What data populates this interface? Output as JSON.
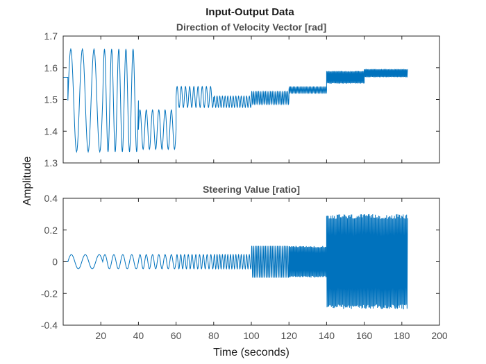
{
  "chart_data": {
    "type": "line",
    "title": "Input-Output Data",
    "xlabel": "Time (seconds)",
    "ylabel": "Amplitude",
    "color": "#0072BD",
    "grid": false,
    "subplots": [
      {
        "title": "Direction of Velocity Vector [rad]",
        "xlim": [
          0,
          200
        ],
        "ylim": [
          1.3,
          1.7
        ],
        "xticks": [],
        "yticks": [
          1.3,
          1.4,
          1.5,
          1.6,
          1.7
        ],
        "ytick_labels": [
          "1.3",
          "1.4",
          "1.5",
          "1.6",
          "1.7"
        ],
        "segments": [
          {
            "t0": 0,
            "t1": 2.5,
            "kind": "const",
            "base": 1.57
          },
          {
            "t0": 2.5,
            "t1": 21,
            "kind": "sine",
            "base": 1.497,
            "amp": 0.162,
            "cycles": 3
          },
          {
            "t0": 21,
            "t1": 40,
            "kind": "sine",
            "base": 1.497,
            "amp": 0.162,
            "cycles": 5
          },
          {
            "t0": 40,
            "t1": 60,
            "kind": "sine",
            "base": 1.405,
            "amp": 0.062,
            "cycles": 6
          },
          {
            "t0": 60,
            "t1": 80,
            "kind": "sine",
            "base": 1.508,
            "amp": 0.033,
            "cycles": 9
          },
          {
            "t0": 80,
            "t1": 100,
            "kind": "sine",
            "base": 1.493,
            "amp": 0.018,
            "cycles": 14
          },
          {
            "t0": 100,
            "t1": 120,
            "kind": "sine",
            "base": 1.505,
            "amp": 0.02,
            "cycles": 22
          },
          {
            "t0": 120,
            "t1": 140,
            "kind": "sine",
            "base": 1.53,
            "amp": 0.01,
            "cycles": 28
          },
          {
            "t0": 140,
            "t1": 160,
            "kind": "band",
            "base": 1.57,
            "amp": 0.02
          },
          {
            "t0": 160,
            "t1": 183,
            "kind": "band",
            "base": 1.583,
            "amp": 0.013
          }
        ]
      },
      {
        "title": "Steering Value [ratio]",
        "xlim": [
          0,
          200
        ],
        "ylim": [
          -0.4,
          0.4
        ],
        "xticks": [
          20,
          40,
          60,
          80,
          100,
          120,
          140,
          160,
          180,
          200
        ],
        "xtick_labels": [
          "20",
          "40",
          "60",
          "80",
          "100",
          "120",
          "140",
          "160",
          "180",
          "200"
        ],
        "yticks": [
          -0.4,
          -0.2,
          0,
          0.2,
          0.4
        ],
        "ytick_labels": [
          "-0.4",
          "-0.2",
          "0",
          "0.2",
          "0.4"
        ],
        "segments": [
          {
            "t0": 0,
            "t1": 2.5,
            "kind": "const",
            "base": 0.0
          },
          {
            "t0": 2.5,
            "t1": 21,
            "kind": "sine",
            "base": 0.0,
            "amp": 0.045,
            "cycles": 2.5
          },
          {
            "t0": 21,
            "t1": 40,
            "kind": "sine",
            "base": 0.0,
            "amp": 0.045,
            "cycles": 4
          },
          {
            "t0": 40,
            "t1": 60,
            "kind": "sine",
            "base": 0.0,
            "amp": 0.045,
            "cycles": 6
          },
          {
            "t0": 60,
            "t1": 80,
            "kind": "sine",
            "base": 0.0,
            "amp": 0.045,
            "cycles": 10
          },
          {
            "t0": 80,
            "t1": 100,
            "kind": "sine",
            "base": 0.0,
            "amp": 0.045,
            "cycles": 14
          },
          {
            "t0": 100,
            "t1": 120,
            "kind": "sine",
            "base": 0.0,
            "amp": 0.1,
            "cycles": 22
          },
          {
            "t0": 120,
            "t1": 140,
            "kind": "band",
            "base": 0.0,
            "amp": 0.1
          },
          {
            "t0": 140,
            "t1": 183,
            "kind": "band",
            "base": 0.0,
            "amp": 0.3
          }
        ]
      }
    ]
  }
}
